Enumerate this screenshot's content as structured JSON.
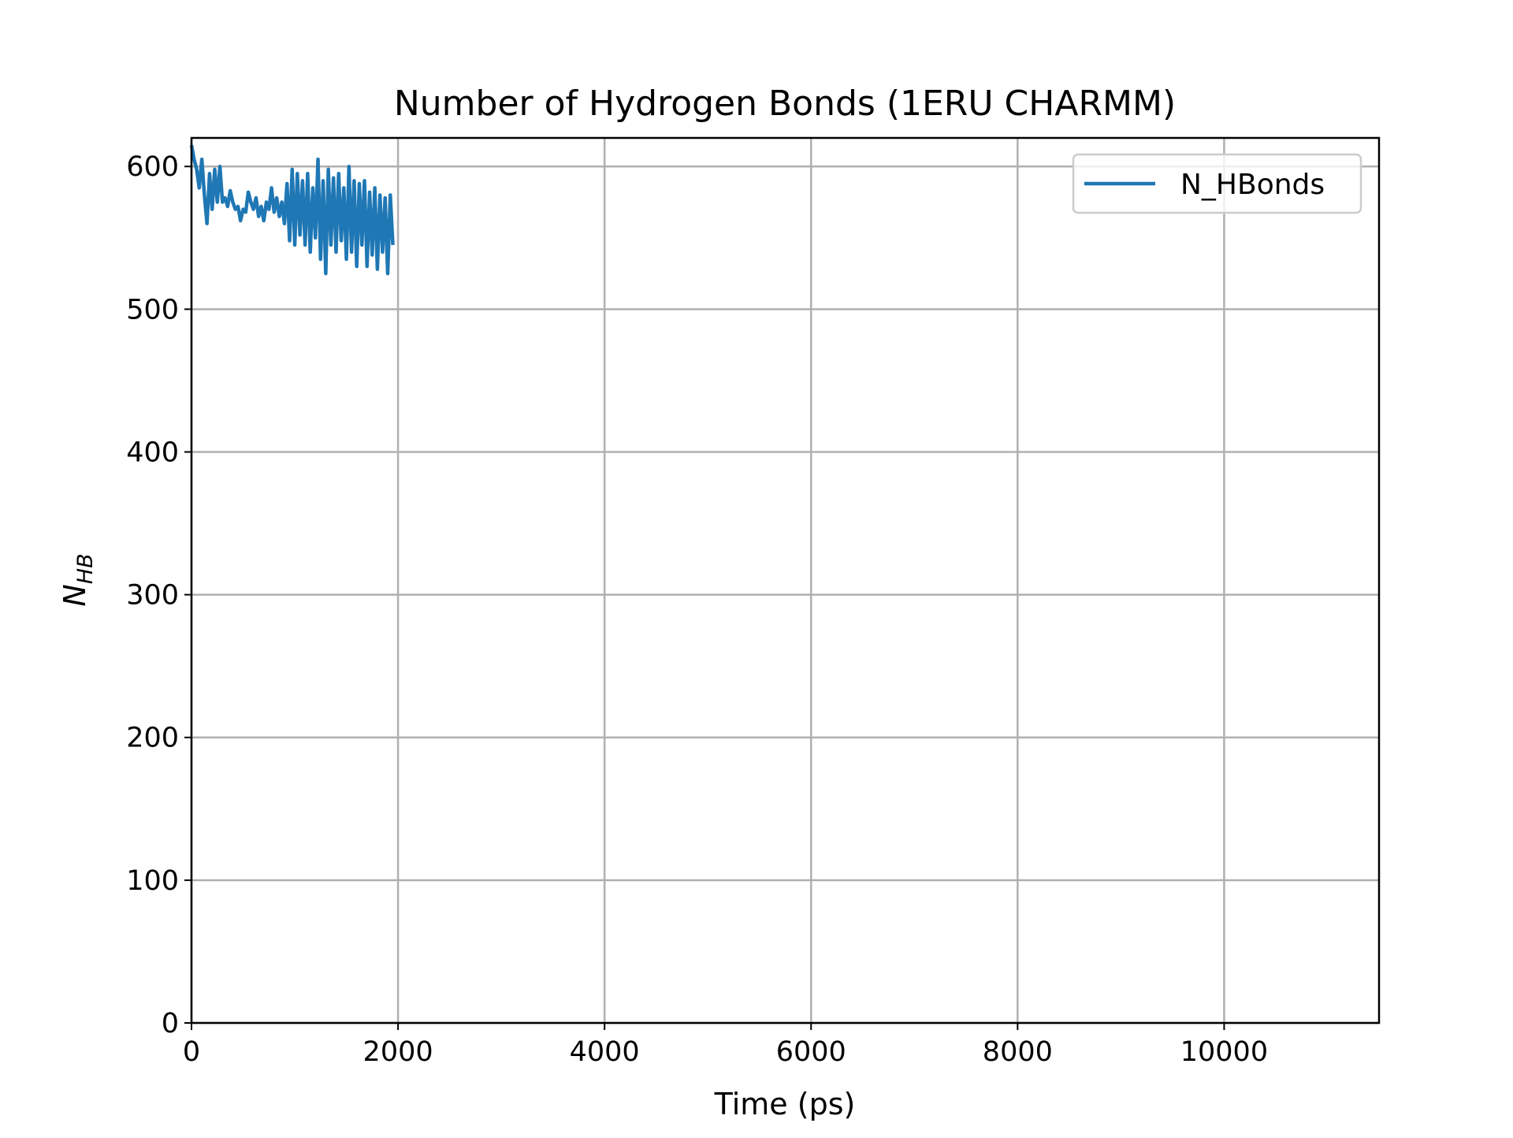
{
  "chart_data": {
    "type": "line",
    "title": "Number of Hydrogen Bonds (1ERU CHARMM)",
    "xlabel": "Time (ps)",
    "ylabel": "N",
    "ylabel_subscript": "HB",
    "x": [
      0,
      25,
      50,
      75,
      100,
      125,
      150,
      175,
      200,
      225,
      250,
      275,
      300,
      325,
      350,
      375,
      400,
      425,
      450,
      475,
      500,
      525,
      550,
      575,
      600,
      625,
      650,
      675,
      700,
      725,
      750,
      775,
      800,
      825,
      850,
      875,
      900,
      925,
      950,
      975,
      1000,
      1025,
      1050,
      1075,
      1100,
      1125,
      1150,
      1175,
      1200,
      1225,
      1250,
      1275,
      1300,
      1325,
      1350,
      1375,
      1400,
      1425,
      1450,
      1475,
      1500,
      1525,
      1550,
      1575,
      1600,
      1625,
      1650,
      1675,
      1700,
      1725,
      1750,
      1775,
      1800,
      1825,
      1850,
      1875,
      1900,
      1925,
      1950
    ],
    "series": [
      {
        "name": "N_HBonds",
        "color": "#1f77b4",
        "values": [
          615,
          605,
          598,
          585,
          605,
          580,
          560,
          595,
          570,
          598,
          575,
          600,
          575,
          578,
          572,
          583,
          575,
          570,
          572,
          562,
          570,
          568,
          582,
          575,
          570,
          578,
          565,
          572,
          562,
          575,
          570,
          585,
          568,
          578,
          565,
          575,
          560,
          588,
          548,
          598,
          545,
          595,
          552,
          590,
          545,
          595,
          540,
          585,
          550,
          605,
          535,
          590,
          525,
          598,
          545,
          592,
          540,
          595,
          548,
          585,
          535,
          600,
          540,
          590,
          530,
          588,
          545,
          590,
          530,
          582,
          538,
          585,
          528,
          580,
          540,
          578,
          525,
          580,
          545
        ]
      }
    ],
    "xlim": [
      0,
      11500
    ],
    "ylim": [
      0,
      620
    ],
    "xticks": [
      0,
      2000,
      4000,
      6000,
      8000,
      10000
    ],
    "yticks": [
      0,
      100,
      200,
      300,
      400,
      500,
      600
    ],
    "grid": true,
    "legend": "upper right"
  }
}
